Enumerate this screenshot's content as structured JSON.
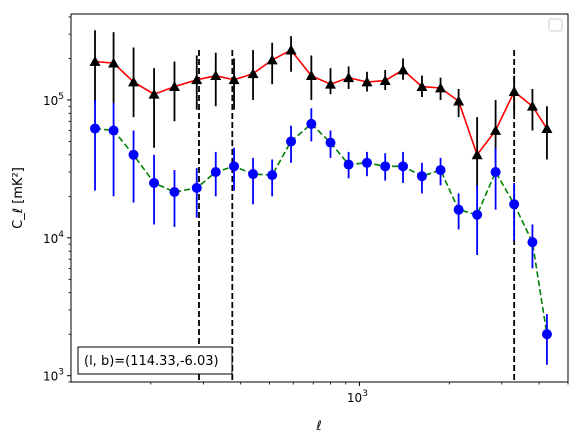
{
  "chart_data": {
    "type": "scatter",
    "title": "",
    "xlabel": "ℓ",
    "ylabel": "C_ℓ [mK²]",
    "xscale": "log",
    "yscale": "log",
    "xlim": [
      108,
      5000
    ],
    "ylim": [
      900,
      420000
    ],
    "x_ticks": [
      {
        "value": 1000,
        "base": "10",
        "exp": "3"
      }
    ],
    "y_ticks": [
      {
        "value": 1000,
        "base": "10",
        "exp": "3"
      },
      {
        "value": 10000,
        "base": "10",
        "exp": "4"
      },
      {
        "value": 100000,
        "base": "10",
        "exp": "5"
      }
    ],
    "annotation": "(l, b)=(114.33,-6.03)",
    "legend": {
      "placement": "top-right",
      "entries": []
    },
    "vlines": [
      {
        "x": 290
      },
      {
        "x": 375
      },
      {
        "x": 3300
      }
    ],
    "series": [
      {
        "color": "#000000",
        "line_color": "#ff0000",
        "line_style": "solid",
        "marker": "triangle",
        "points": [
          {
            "x": 130,
            "y": 190000,
            "lo": 95000,
            "hi": 320000
          },
          {
            "x": 150,
            "y": 185000,
            "lo": 95000,
            "hi": 310000
          },
          {
            "x": 175,
            "y": 135000,
            "lo": 75000,
            "hi": 240000
          },
          {
            "x": 205,
            "y": 110000,
            "lo": 45000,
            "hi": 170000
          },
          {
            "x": 240,
            "y": 125000,
            "lo": 70000,
            "hi": 190000
          },
          {
            "x": 285,
            "y": 140000,
            "lo": 85000,
            "hi": 210000
          },
          {
            "x": 330,
            "y": 150000,
            "lo": 90000,
            "hi": 220000
          },
          {
            "x": 380,
            "y": 140000,
            "lo": 85000,
            "hi": 200000
          },
          {
            "x": 440,
            "y": 155000,
            "lo": 100000,
            "hi": 230000
          },
          {
            "x": 510,
            "y": 195000,
            "lo": 130000,
            "hi": 260000
          },
          {
            "x": 590,
            "y": 230000,
            "lo": 160000,
            "hi": 290000
          },
          {
            "x": 690,
            "y": 150000,
            "lo": 100000,
            "hi": 210000
          },
          {
            "x": 800,
            "y": 130000,
            "lo": 110000,
            "hi": 170000
          },
          {
            "x": 920,
            "y": 145000,
            "lo": 120000,
            "hi": 175000
          },
          {
            "x": 1060,
            "y": 135000,
            "lo": 115000,
            "hi": 160000
          },
          {
            "x": 1220,
            "y": 138000,
            "lo": 118000,
            "hi": 165000
          },
          {
            "x": 1400,
            "y": 165000,
            "lo": 140000,
            "hi": 200000
          },
          {
            "x": 1620,
            "y": 125000,
            "lo": 105000,
            "hi": 150000
          },
          {
            "x": 1870,
            "y": 122000,
            "lo": 100000,
            "hi": 145000
          },
          {
            "x": 2150,
            "y": 98000,
            "lo": 75000,
            "hi": 120000
          },
          {
            "x": 2480,
            "y": 40000,
            "lo": 22000,
            "hi": 75000
          },
          {
            "x": 2860,
            "y": 60000,
            "lo": 35000,
            "hi": 100000
          },
          {
            "x": 3300,
            "y": 115000,
            "lo": 80000,
            "hi": 150000
          },
          {
            "x": 3800,
            "y": 90000,
            "lo": 60000,
            "hi": 120000
          },
          {
            "x": 4250,
            "y": 62000,
            "lo": 37000,
            "hi": 90000
          }
        ]
      },
      {
        "color": "#0000ff",
        "line_color": "#008000",
        "line_style": "dashed",
        "marker": "circle",
        "points": [
          {
            "x": 130,
            "y": 62000,
            "lo": 22000,
            "hi": 100000
          },
          {
            "x": 150,
            "y": 60000,
            "lo": 20000,
            "hi": 95000
          },
          {
            "x": 175,
            "y": 40000,
            "lo": 18000,
            "hi": 60000
          },
          {
            "x": 205,
            "y": 25000,
            "lo": 12500,
            "hi": 40000
          },
          {
            "x": 240,
            "y": 21500,
            "lo": 12000,
            "hi": 31000
          },
          {
            "x": 285,
            "y": 23000,
            "lo": 14000,
            "hi": 32000
          },
          {
            "x": 330,
            "y": 30000,
            "lo": 20000,
            "hi": 42000
          },
          {
            "x": 380,
            "y": 33000,
            "lo": 22000,
            "hi": 45000
          },
          {
            "x": 440,
            "y": 29000,
            "lo": 17500,
            "hi": 38000
          },
          {
            "x": 510,
            "y": 28500,
            "lo": 20000,
            "hi": 37000
          },
          {
            "x": 590,
            "y": 50000,
            "lo": 35000,
            "hi": 65000
          },
          {
            "x": 690,
            "y": 67000,
            "lo": 50000,
            "hi": 87000
          },
          {
            "x": 800,
            "y": 49000,
            "lo": 38000,
            "hi": 60000
          },
          {
            "x": 920,
            "y": 34000,
            "lo": 27000,
            "hi": 42000
          },
          {
            "x": 1060,
            "y": 35000,
            "lo": 28000,
            "hi": 42000
          },
          {
            "x": 1220,
            "y": 33000,
            "lo": 26000,
            "hi": 41000
          },
          {
            "x": 1400,
            "y": 33000,
            "lo": 25000,
            "hi": 42000
          },
          {
            "x": 1620,
            "y": 28000,
            "lo": 21000,
            "hi": 35000
          },
          {
            "x": 1870,
            "y": 31000,
            "lo": 24000,
            "hi": 38000
          },
          {
            "x": 2150,
            "y": 16000,
            "lo": 11500,
            "hi": 21000
          },
          {
            "x": 2480,
            "y": 14700,
            "lo": 7500,
            "hi": 24000
          },
          {
            "x": 2860,
            "y": 30000,
            "lo": 16000,
            "hi": 45000
          },
          {
            "x": 3300,
            "y": 17500,
            "lo": 9500,
            "hi": 25000
          },
          {
            "x": 3800,
            "y": 9300,
            "lo": 6000,
            "hi": 12500
          },
          {
            "x": 4250,
            "y": 2000,
            "lo": 1200,
            "hi": 2800
          }
        ]
      }
    ]
  }
}
